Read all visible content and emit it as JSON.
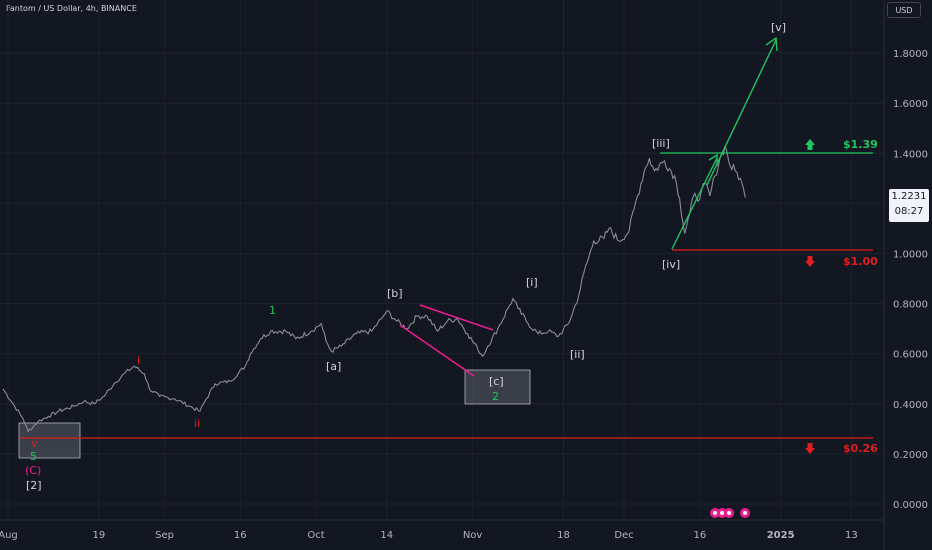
{
  "header": {
    "title": "Fantom / US Dollar, 4h, BINANCE",
    "currency_button": "USD"
  },
  "price_tag": {
    "value": "1.2231",
    "countdown": "08:27"
  },
  "colors": {
    "background": "#131722",
    "price_line": "#8a8d96",
    "green": "#22c55e",
    "red": "#e01e1e",
    "pink": "#e91e8c",
    "box": "#5d606b"
  },
  "chart_data": {
    "type": "line",
    "title": "Fantom / US Dollar, 4h, BINANCE",
    "y_ticks": [
      "1.8000",
      "1.6000",
      "1.4000",
      "1.2000",
      "1.0000",
      "0.8000",
      "0.6000",
      "0.4000",
      "0.2000",
      "0.0000"
    ],
    "ylim": [
      -0.03,
      1.97
    ],
    "x_tick_labels": [
      "Aug",
      "19",
      "Sep",
      "16",
      "Oct",
      "14",
      "Nov",
      "18",
      "Dec",
      "16",
      "2025",
      "13"
    ],
    "x_tick_days": [
      0,
      18,
      31,
      46,
      61,
      75,
      92,
      110,
      122,
      137,
      153,
      167
    ],
    "x_axis_note": "x values are day offsets from Aug 1, 2024",
    "series": [
      {
        "points": [
          [
            -1,
            0.46
          ],
          [
            1,
            0.4
          ],
          [
            3,
            0.34
          ],
          [
            4,
            0.29
          ],
          [
            5,
            0.31
          ],
          [
            6,
            0.33
          ],
          [
            8,
            0.35
          ],
          [
            10,
            0.37
          ],
          [
            13,
            0.39
          ],
          [
            15,
            0.41
          ],
          [
            17,
            0.4
          ],
          [
            19,
            0.43
          ],
          [
            21,
            0.48
          ],
          [
            23,
            0.52
          ],
          [
            25,
            0.55
          ],
          [
            27,
            0.52
          ],
          [
            28,
            0.46
          ],
          [
            30,
            0.43
          ],
          [
            33,
            0.42
          ],
          [
            36,
            0.39
          ],
          [
            38,
            0.37
          ],
          [
            39,
            0.41
          ],
          [
            41,
            0.48
          ],
          [
            44,
            0.49
          ],
          [
            47,
            0.55
          ],
          [
            48,
            0.6
          ],
          [
            50,
            0.66
          ],
          [
            52,
            0.69
          ],
          [
            55,
            0.69
          ],
          [
            57,
            0.66
          ],
          [
            60,
            0.69
          ],
          [
            62,
            0.72
          ],
          [
            63,
            0.65
          ],
          [
            64,
            0.61
          ],
          [
            66,
            0.63
          ],
          [
            69,
            0.68
          ],
          [
            72,
            0.69
          ],
          [
            74,
            0.74
          ],
          [
            75,
            0.77
          ],
          [
            77,
            0.73
          ],
          [
            79,
            0.7
          ],
          [
            81,
            0.75
          ],
          [
            83,
            0.75
          ],
          [
            85,
            0.69
          ],
          [
            87,
            0.73
          ],
          [
            89,
            0.74
          ],
          [
            91,
            0.68
          ],
          [
            93,
            0.62
          ],
          [
            94,
            0.59
          ],
          [
            95,
            0.63
          ],
          [
            97,
            0.7
          ],
          [
            99,
            0.78
          ],
          [
            100,
            0.82
          ],
          [
            101,
            0.78
          ],
          [
            103,
            0.72
          ],
          [
            105,
            0.68
          ],
          [
            107,
            0.69
          ],
          [
            109,
            0.67
          ],
          [
            111,
            0.72
          ],
          [
            113,
            0.83
          ],
          [
            114,
            0.92
          ],
          [
            116,
            1.05
          ],
          [
            118,
            1.06
          ],
          [
            119,
            1.1
          ],
          [
            121,
            1.05
          ],
          [
            123,
            1.09
          ],
          [
            124,
            1.18
          ],
          [
            126,
            1.33
          ],
          [
            127,
            1.38
          ],
          [
            128,
            1.33
          ],
          [
            130,
            1.37
          ],
          [
            132,
            1.31
          ],
          [
            133,
            1.22
          ],
          [
            134,
            1.08
          ],
          [
            135,
            1.16
          ],
          [
            136,
            1.24
          ],
          [
            137,
            1.22
          ],
          [
            138,
            1.28
          ],
          [
            139,
            1.23
          ],
          [
            140,
            1.31
          ],
          [
            141,
            1.38
          ],
          [
            142,
            1.43
          ],
          [
            143,
            1.35
          ],
          [
            144,
            1.33
          ],
          [
            145,
            1.3
          ],
          [
            146,
            1.2231
          ]
        ]
      }
    ],
    "annotations": {
      "waves_white": [
        "[a]",
        "[b]",
        "[c]",
        "[i]",
        "[ii]",
        "[iii]",
        "[iv]",
        "[v]",
        "(C)",
        "[2]"
      ],
      "waves_green": [
        "1",
        "2",
        "5"
      ],
      "waves_red": [
        "i",
        "ii",
        "v"
      ],
      "levels": [
        {
          "label": "$1.39",
          "value": 1.39,
          "color": "green",
          "arrow": "up"
        },
        {
          "label": "$1.00",
          "value": 1.0,
          "color": "red",
          "arrow": "down"
        },
        {
          "label": "$0.26",
          "value": 0.26,
          "color": "red",
          "arrow": "down"
        }
      ]
    }
  }
}
